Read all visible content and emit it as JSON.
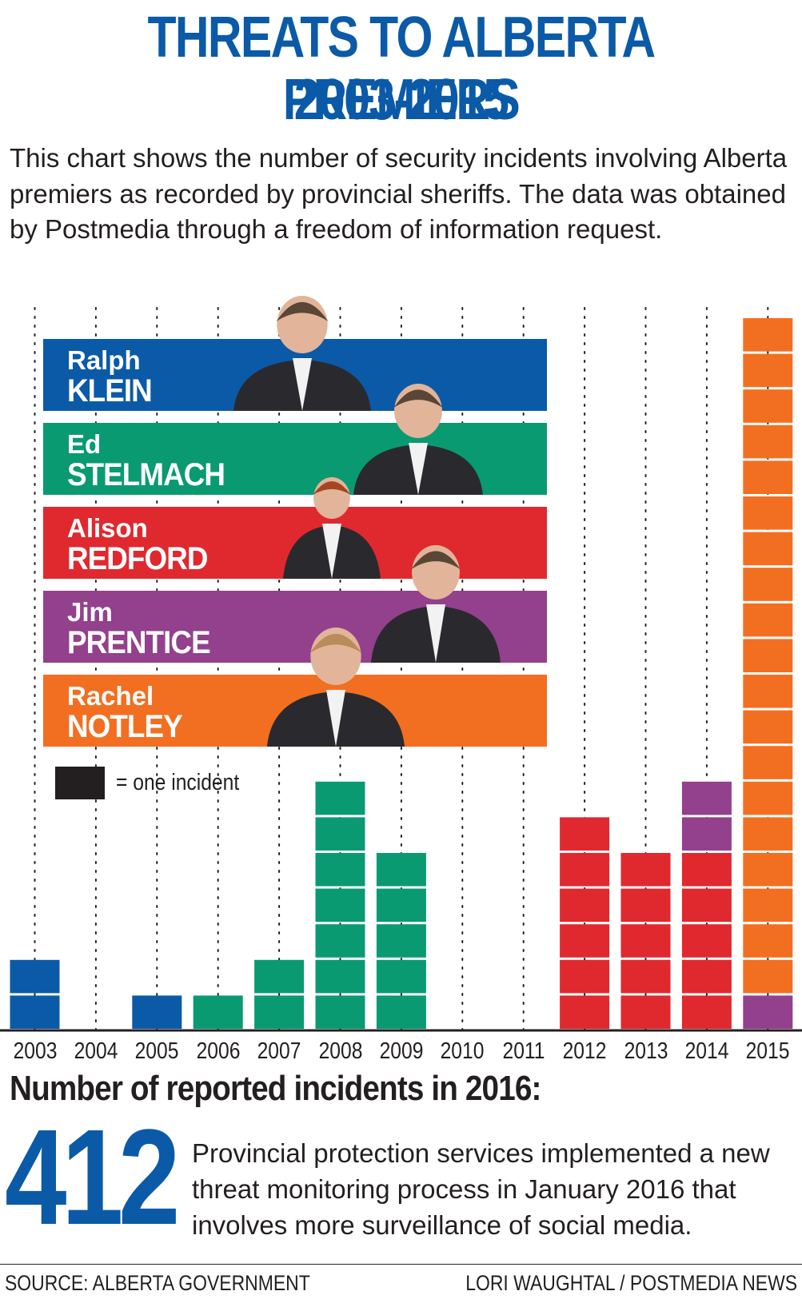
{
  "title_line1": "THREATS TO ALBERTA PREMIERS",
  "title_line2": "2003-2015",
  "intro": "This chart shows the number of security incidents involving Alberta premiers as recorded by provincial sheriffs. The data was obtained by Postmedia through a freedom of information request.",
  "colors": {
    "title": "#0b5aa8",
    "Ralph KLEIN": "#0b5aa8",
    "Ed STELMACH": "#0a9a72",
    "Alison REDFORD": "#e0292f",
    "Jim PRENTICE": "#93408d",
    "Rachel NOTLEY": "#f26f21",
    "text": "#231f20"
  },
  "legend": {
    "swatch_text": "= one incident",
    "premiers": [
      {
        "first": "Ralph",
        "last": "KLEIN",
        "photo": "ralph-klein-photo"
      },
      {
        "first": "Ed",
        "last": "STELMACH",
        "photo": "ed-stelmach-photo"
      },
      {
        "first": "Alison",
        "last": "REDFORD",
        "photo": "alison-redford-photo"
      },
      {
        "first": "Jim",
        "last": "PRENTICE",
        "photo": "jim-prentice-photo"
      },
      {
        "first": "Rachel",
        "last": "NOTLEY",
        "photo": "rachel-notley-photo"
      }
    ]
  },
  "chart_data": {
    "type": "bar",
    "stacked": true,
    "unit": "one incident",
    "categories": [
      "2003",
      "2004",
      "2005",
      "2006",
      "2007",
      "2008",
      "2009",
      "2010",
      "2011",
      "2012",
      "2013",
      "2014",
      "2015"
    ],
    "series": [
      {
        "name": "Ralph KLEIN",
        "values": [
          2,
          0,
          1,
          0,
          0,
          0,
          0,
          0,
          0,
          0,
          0,
          0,
          0
        ]
      },
      {
        "name": "Ed STELMACH",
        "values": [
          0,
          0,
          0,
          1,
          2,
          7,
          5,
          0,
          0,
          0,
          0,
          0,
          0
        ]
      },
      {
        "name": "Alison REDFORD",
        "values": [
          0,
          0,
          0,
          0,
          0,
          0,
          0,
          0,
          0,
          6,
          5,
          5,
          0
        ]
      },
      {
        "name": "Jim PRENTICE",
        "values": [
          0,
          0,
          0,
          0,
          0,
          0,
          0,
          0,
          0,
          0,
          0,
          2,
          1
        ]
      },
      {
        "name": "Rachel NOTLEY",
        "values": [
          0,
          0,
          0,
          0,
          0,
          0,
          0,
          0,
          0,
          0,
          0,
          0,
          19
        ]
      }
    ],
    "ylim": [
      0,
      20
    ],
    "grid": "dotted vertical lines per year",
    "legend_placement": "top-left"
  },
  "stats": {
    "heading": "Number of reported incidents in 2016:",
    "value": "412",
    "note": "Provincial protection services implemented a new threat monitoring process in January 2016 that involves more surveillance of social media."
  },
  "footer": {
    "source": "SOURCE: ALBERTA GOVERNMENT",
    "credit": "LORI WAUGHTAL / POSTMEDIA NEWS"
  }
}
